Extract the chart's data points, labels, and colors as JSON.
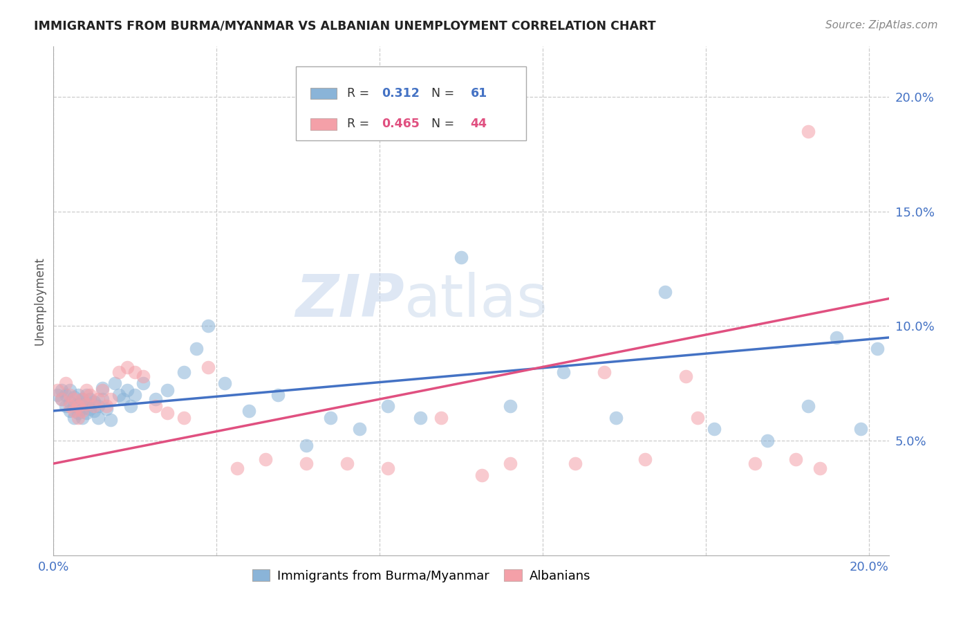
{
  "title": "IMMIGRANTS FROM BURMA/MYANMAR VS ALBANIAN UNEMPLOYMENT CORRELATION CHART",
  "source": "Source: ZipAtlas.com",
  "ylabel": "Unemployment",
  "xlim": [
    0.0,
    0.205
  ],
  "ylim": [
    0.0,
    0.222
  ],
  "yticks": [
    0.05,
    0.1,
    0.15,
    0.2
  ],
  "xticks": [
    0.0,
    0.04,
    0.08,
    0.12,
    0.16,
    0.2
  ],
  "background_color": "#ffffff",
  "watermark_zip": "ZIP",
  "watermark_atlas": "atlas",
  "blue_color": "#8ab4d8",
  "pink_color": "#f4a0a8",
  "blue_line_color": "#4472c4",
  "pink_line_color": "#e05080",
  "tick_color": "#4472c4",
  "grid_color": "#cccccc",
  "blue_scatter_x": [
    0.001,
    0.002,
    0.002,
    0.003,
    0.003,
    0.004,
    0.004,
    0.004,
    0.005,
    0.005,
    0.005,
    0.006,
    0.006,
    0.006,
    0.007,
    0.007,
    0.007,
    0.008,
    0.008,
    0.008,
    0.009,
    0.009,
    0.01,
    0.01,
    0.011,
    0.011,
    0.012,
    0.012,
    0.013,
    0.014,
    0.015,
    0.016,
    0.017,
    0.018,
    0.019,
    0.02,
    0.022,
    0.025,
    0.028,
    0.032,
    0.035,
    0.038,
    0.042,
    0.048,
    0.055,
    0.062,
    0.068,
    0.075,
    0.082,
    0.09,
    0.1,
    0.112,
    0.125,
    0.138,
    0.15,
    0.162,
    0.175,
    0.185,
    0.192,
    0.198,
    0.202
  ],
  "blue_scatter_y": [
    0.07,
    0.068,
    0.072,
    0.065,
    0.07,
    0.063,
    0.067,
    0.072,
    0.06,
    0.065,
    0.069,
    0.062,
    0.066,
    0.07,
    0.06,
    0.064,
    0.068,
    0.062,
    0.066,
    0.07,
    0.064,
    0.068,
    0.063,
    0.067,
    0.06,
    0.065,
    0.068,
    0.073,
    0.064,
    0.059,
    0.075,
    0.07,
    0.068,
    0.072,
    0.065,
    0.07,
    0.075,
    0.068,
    0.072,
    0.08,
    0.09,
    0.1,
    0.075,
    0.063,
    0.07,
    0.048,
    0.06,
    0.055,
    0.065,
    0.06,
    0.13,
    0.065,
    0.08,
    0.06,
    0.115,
    0.055,
    0.05,
    0.065,
    0.095,
    0.055,
    0.09
  ],
  "pink_scatter_x": [
    0.001,
    0.002,
    0.003,
    0.004,
    0.004,
    0.005,
    0.005,
    0.006,
    0.006,
    0.007,
    0.007,
    0.008,
    0.008,
    0.009,
    0.01,
    0.011,
    0.012,
    0.013,
    0.014,
    0.016,
    0.018,
    0.02,
    0.022,
    0.025,
    0.028,
    0.032,
    0.038,
    0.045,
    0.052,
    0.062,
    0.072,
    0.082,
    0.095,
    0.112,
    0.128,
    0.145,
    0.158,
    0.172,
    0.182,
    0.188,
    0.155,
    0.135,
    0.105,
    0.185
  ],
  "pink_scatter_y": [
    0.072,
    0.068,
    0.075,
    0.065,
    0.07,
    0.063,
    0.068,
    0.06,
    0.065,
    0.063,
    0.068,
    0.072,
    0.066,
    0.07,
    0.065,
    0.068,
    0.072,
    0.065,
    0.068,
    0.08,
    0.082,
    0.08,
    0.078,
    0.065,
    0.062,
    0.06,
    0.082,
    0.038,
    0.042,
    0.04,
    0.04,
    0.038,
    0.06,
    0.04,
    0.04,
    0.042,
    0.06,
    0.04,
    0.042,
    0.038,
    0.078,
    0.08,
    0.035,
    0.185
  ],
  "blue_trend_x": [
    0.0,
    0.205
  ],
  "blue_trend_y": [
    0.063,
    0.095
  ],
  "pink_trend_x": [
    0.0,
    0.205
  ],
  "pink_trend_y": [
    0.04,
    0.112
  ]
}
